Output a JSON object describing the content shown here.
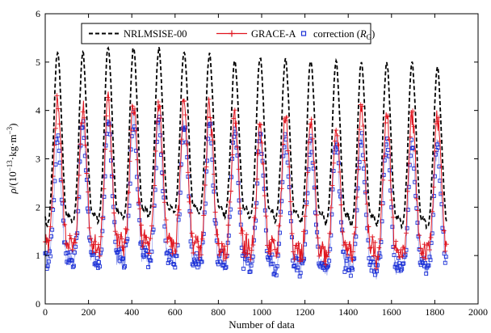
{
  "chart_data": {
    "type": "line",
    "title": "",
    "xlabel": "Number of data",
    "ylabel_parts": {
      "symbol": "ρ",
      "open": "/(10",
      "exp1": "−13",
      "mid": "·kg·m",
      "exp2": "−3",
      "close": ")"
    },
    "xlim": [
      0,
      2000
    ],
    "ylim": [
      0,
      6
    ],
    "xticks": [
      0,
      200,
      400,
      600,
      800,
      1000,
      1200,
      1400,
      1600,
      1800,
      2000
    ],
    "yticks": [
      0,
      1,
      2,
      3,
      4,
      5,
      6
    ],
    "grid": false,
    "legend_position": "top",
    "cycles": {
      "period": 117,
      "first_peak_x": 58,
      "x_end": 1855,
      "nrlmsise_peaks": [
        5.05,
        5.02,
        5.15,
        5.12,
        5.1,
        5.08,
        5.0,
        4.85,
        4.95,
        4.92,
        4.88,
        4.85,
        4.85,
        4.82,
        4.8,
        4.72
      ],
      "nrlmsise_troughs": [
        1.6,
        1.65,
        1.7,
        1.75,
        1.8,
        1.85,
        1.85,
        1.8,
        1.75,
        1.7,
        1.65,
        1.65,
        1.62,
        1.6,
        1.6,
        1.55
      ],
      "grace_peaks": [
        4.05,
        3.95,
        4.05,
        4.0,
        4.0,
        4.05,
        3.95,
        3.75,
        3.5,
        3.75,
        3.55,
        3.55,
        3.85,
        3.85,
        3.75,
        3.7
      ],
      "grace_troughs": [
        1.15,
        1.1,
        1.1,
        1.15,
        1.15,
        1.1,
        1.1,
        1.05,
        1.05,
        1.0,
        1.0,
        1.0,
        1.0,
        0.95,
        0.95,
        1.0
      ],
      "correction_peaks": [
        3.25,
        3.55,
        3.7,
        3.65,
        3.6,
        3.6,
        3.55,
        3.45,
        3.25,
        3.3,
        3.2,
        3.2,
        3.3,
        3.25,
        3.2,
        3.15
      ],
      "correction_troughs": [
        0.85,
        0.8,
        0.8,
        0.85,
        0.85,
        0.8,
        0.8,
        0.75,
        0.75,
        0.7,
        0.7,
        0.7,
        0.7,
        0.65,
        0.65,
        0.7
      ]
    },
    "series": [
      {
        "name": "NRLMSISE-00",
        "color": "#000000",
        "style": "dashed"
      },
      {
        "name": "GRACE-A",
        "color": "#e0141e",
        "style": "line-plus"
      },
      {
        "name": "correction",
        "subscript": "G",
        "color": "#1a2fd6",
        "style": "square-markers"
      }
    ],
    "legend": {
      "nrl_label": "NRLMSISE-00",
      "grace_label": "GRACE-A",
      "corr_label": "correction (",
      "corr_sym": "R",
      "corr_sub": "G",
      "corr_close": ")"
    }
  }
}
